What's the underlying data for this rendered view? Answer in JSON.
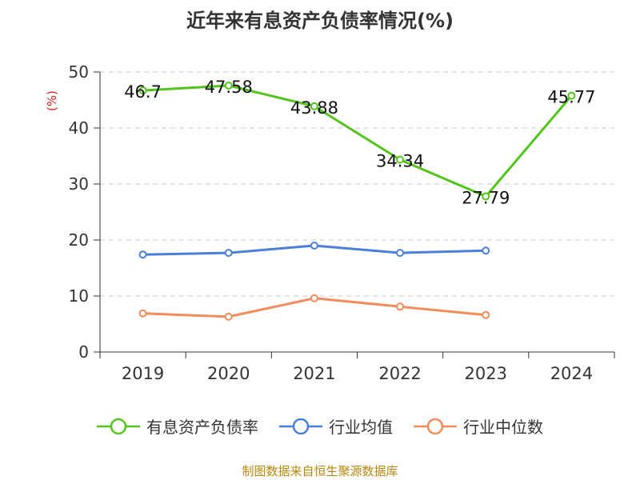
{
  "chart_data": {
    "type": "line",
    "title": "近年来有息资产负债率情况(%)",
    "ylabel": "(%)",
    "ylim": [
      0,
      50
    ],
    "yticks": [
      0,
      10,
      20,
      30,
      40,
      50
    ],
    "categories": [
      "2019",
      "2020",
      "2021",
      "2022",
      "2023",
      "2024"
    ],
    "grid": true,
    "legend_position": "bottom",
    "series": [
      {
        "name": "有息资产负债率",
        "color": "#52c41a",
        "values": [
          46.7,
          47.58,
          43.88,
          34.34,
          27.79,
          45.77
        ],
        "labels": [
          "46.7",
          "47.58",
          "43.88",
          "34.34",
          "27.79",
          "45.77"
        ]
      },
      {
        "name": "行业均值",
        "color": "#4a7fdc",
        "values": [
          17.4,
          17.7,
          19.0,
          17.7,
          18.1,
          null
        ]
      },
      {
        "name": "行业中位数",
        "color": "#f28c5a",
        "values": [
          6.9,
          6.3,
          9.6,
          8.1,
          6.6,
          null
        ]
      }
    ]
  },
  "footer": "制图数据来自恒生聚源数据库"
}
